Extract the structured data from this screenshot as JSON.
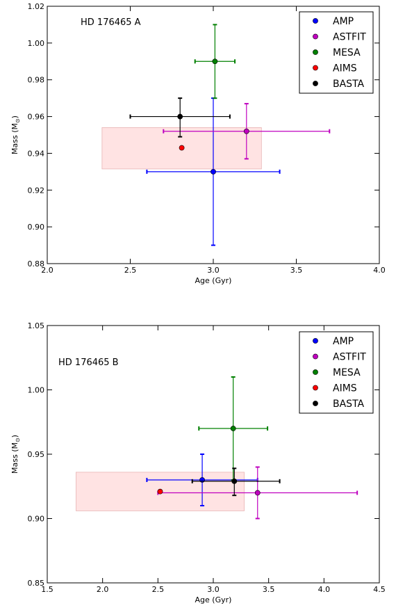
{
  "chart_data": [
    {
      "type": "scatter",
      "annotation": "HD 176465 A",
      "xlabel": "Age (Gyr)",
      "ylabel": "Mass (M",
      "ylabel_sub": "⊙",
      "ylabel_close": ")",
      "xlim": [
        2.0,
        4.0
      ],
      "ylim": [
        0.88,
        1.02
      ],
      "xticks": [
        "2.0",
        "2.5",
        "3.0",
        "3.5",
        "4.0"
      ],
      "yticks": [
        "0.88",
        "0.90",
        "0.92",
        "0.94",
        "0.96",
        "0.98",
        "1.00",
        "1.02"
      ],
      "legend_position": "top-right",
      "band": {
        "x": [
          2.33,
          3.29
        ],
        "y": [
          0.9315,
          0.954
        ],
        "color": "#ffcccc"
      },
      "series": [
        {
          "name": "AMP",
          "color": "#0000ff",
          "x": 3.0,
          "y": 0.93,
          "x_err": [
            0.4,
            0.4
          ],
          "y_err": [
            0.04,
            0.04
          ]
        },
        {
          "name": "ASTFIT",
          "color": "#bf00bf",
          "x": 3.2,
          "y": 0.952,
          "x_err": [
            0.5,
            0.5
          ],
          "y_err": [
            0.015,
            0.015
          ]
        },
        {
          "name": "MESA",
          "color": "#008000",
          "x": 3.01,
          "y": 0.99,
          "x_err": [
            0.12,
            0.12
          ],
          "y_err": [
            0.02,
            0.02
          ]
        },
        {
          "name": "AIMS",
          "color": "#ff0000",
          "x": 2.81,
          "y": 0.943,
          "x_err": [
            0,
            0
          ],
          "y_err": [
            0,
            0
          ]
        },
        {
          "name": "BASTA",
          "color": "#000000",
          "x": 2.8,
          "y": 0.96,
          "x_err": [
            0.3,
            0.3
          ],
          "y_err": [
            0.011,
            0.01
          ]
        }
      ]
    },
    {
      "type": "scatter",
      "annotation": "HD 176465 B",
      "xlabel": "Age (Gyr)",
      "ylabel": "Mass (M",
      "ylabel_sub": "⊙",
      "ylabel_close": ")",
      "xlim": [
        1.5,
        4.5
      ],
      "ylim": [
        0.85,
        1.05
      ],
      "xticks": [
        "1.5",
        "2.0",
        "2.5",
        "3.0",
        "3.5",
        "4.0",
        "4.5"
      ],
      "yticks": [
        "0.85",
        "0.90",
        "0.95",
        "1.00",
        "1.05"
      ],
      "legend_position": "top-right",
      "band": {
        "x": [
          1.76,
          3.28
        ],
        "y": [
          0.906,
          0.936
        ],
        "color": "#ffcccc"
      },
      "series": [
        {
          "name": "AMP",
          "color": "#0000ff",
          "x": 2.9,
          "y": 0.93,
          "x_err": [
            0.5,
            0.5
          ],
          "y_err": [
            0.02,
            0.02
          ]
        },
        {
          "name": "ASTFIT",
          "color": "#bf00bf",
          "x": 3.4,
          "y": 0.92,
          "x_err": [
            0.9,
            0.9
          ],
          "y_err": [
            0.02,
            0.02
          ]
        },
        {
          "name": "MESA",
          "color": "#008000",
          "x": 3.18,
          "y": 0.97,
          "x_err": [
            0.31,
            0.31
          ],
          "y_err": [
            0.04,
            0.04
          ]
        },
        {
          "name": "AIMS",
          "color": "#ff0000",
          "x": 2.52,
          "y": 0.921,
          "x_err": [
            0,
            0
          ],
          "y_err": [
            0,
            0
          ]
        },
        {
          "name": "BASTA",
          "color": "#000000",
          "x": 3.19,
          "y": 0.929,
          "x_err": [
            0.38,
            0.41
          ],
          "y_err": [
            0.011,
            0.01
          ]
        }
      ]
    }
  ]
}
